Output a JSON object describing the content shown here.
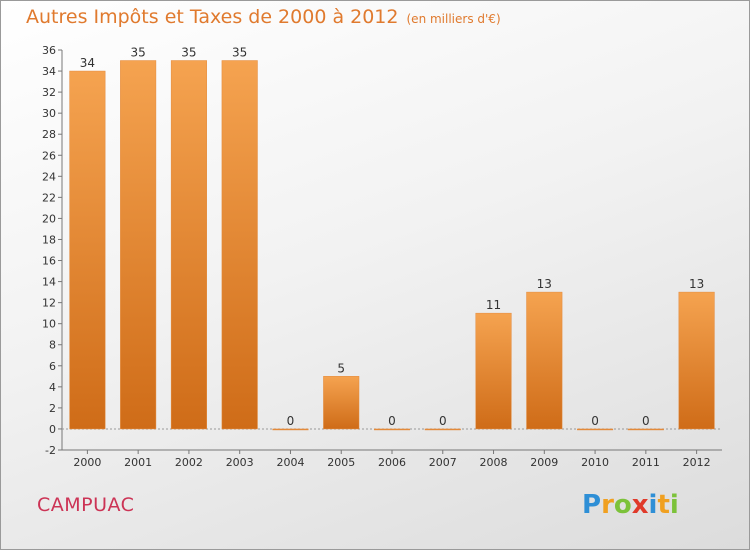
{
  "title": "Autres Impôts et Taxes de 2000 à 2012",
  "unit": "(en milliers d'€)",
  "commune": "CAMPUAC",
  "logo": {
    "letters": [
      "P",
      "r",
      "o",
      "x",
      "i",
      "t",
      "i"
    ],
    "colors": [
      "#2e8fd6",
      "#f0a020",
      "#7cc23a",
      "#e03a2a",
      "#2e8fd6",
      "#f0a020",
      "#7cc23a"
    ]
  },
  "colors": {
    "bar_top": "#f5a350",
    "bar_bottom": "#cf6c18",
    "grid": "#d8d8d8"
  },
  "chart_data": {
    "type": "bar",
    "title": "Autres Impôts et Taxes de 2000 à 2012",
    "categories": [
      "2000",
      "2001",
      "2002",
      "2003",
      "2004",
      "2005",
      "2006",
      "2007",
      "2008",
      "2009",
      "2010",
      "2011",
      "2012"
    ],
    "values": [
      34,
      35,
      35,
      35,
      0,
      5,
      0,
      0,
      11,
      13,
      0,
      0,
      13
    ],
    "ylim": [
      -2,
      36
    ],
    "yticks": [
      -2,
      0,
      2,
      4,
      6,
      8,
      10,
      12,
      14,
      16,
      18,
      20,
      22,
      24,
      26,
      28,
      30,
      32,
      34,
      36
    ],
    "grid": false,
    "xlabel": "",
    "ylabel": ""
  }
}
